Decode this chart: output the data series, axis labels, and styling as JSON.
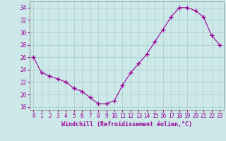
{
  "x": [
    0,
    1,
    2,
    3,
    4,
    5,
    6,
    7,
    8,
    9,
    10,
    11,
    12,
    13,
    14,
    15,
    16,
    17,
    18,
    19,
    20,
    21,
    22,
    23
  ],
  "y": [
    26,
    23.5,
    23.0,
    22.5,
    22.0,
    21.0,
    20.5,
    19.5,
    18.5,
    18.5,
    19.0,
    21.5,
    23.5,
    25.0,
    26.5,
    28.5,
    30.5,
    32.5,
    34.0,
    34.0,
    33.5,
    32.5,
    29.5,
    28.0
  ],
  "line_color": "#990099",
  "marker": "+",
  "marker_size": 4,
  "marker_color": "#990099",
  "background_color": "#cce8e8",
  "grid_color": "#aacccc",
  "xlabel": "Windchill (Refroidissement éolien,°C)",
  "xlabel_color": "#990099",
  "xlabel_fontsize": 6.0,
  "ylabel_ticks": [
    18,
    20,
    22,
    24,
    26,
    28,
    30,
    32,
    34
  ],
  "xlim": [
    -0.5,
    23.5
  ],
  "ylim": [
    17.5,
    35
  ],
  "tick_fontsize": 5.5,
  "tick_color": "#990099"
}
